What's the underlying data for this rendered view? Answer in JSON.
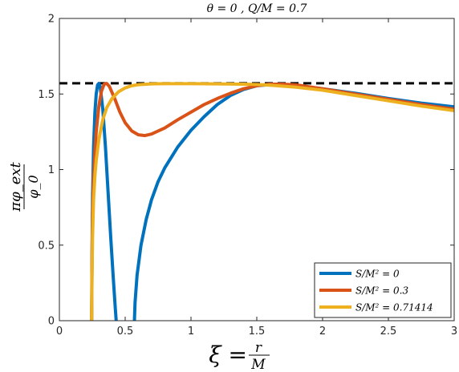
{
  "chart_data": {
    "type": "line",
    "title": "θ = 0 ,    Q/M = 0.7",
    "xlabel": {
      "lhs": "ξ = ",
      "num": "r",
      "den": "M"
    },
    "ylabel": {
      "num": "πφ_ext",
      "den": "φ_0"
    },
    "xlim": [
      0,
      3
    ],
    "ylim": [
      0,
      2
    ],
    "xticks": [
      0,
      0.5,
      1,
      1.5,
      2,
      2.5,
      3
    ],
    "xtick_labels": [
      "0",
      "0.5",
      "1",
      "1.5",
      "2",
      "2.5",
      "3"
    ],
    "yticks": [
      0,
      0.5,
      1,
      1.5,
      2
    ],
    "ytick_labels": [
      "0",
      "0.5",
      "1",
      "1.5",
      "2"
    ],
    "grid": false,
    "legend_position": "bottom-right",
    "reference_line": {
      "y": 1.5708,
      "style": "dashed",
      "color": "#000000"
    },
    "series": [
      {
        "name": "S/M² = 0",
        "color": "#0072BD",
        "segments": [
          [
            [
              0.245,
              0.0
            ],
            [
              0.248,
              0.45
            ],
            [
              0.252,
              0.8
            ],
            [
              0.26,
              1.15
            ],
            [
              0.27,
              1.38
            ],
            [
              0.28,
              1.5
            ],
            [
              0.29,
              1.56
            ],
            [
              0.3,
              1.57
            ],
            [
              0.31,
              1.55
            ],
            [
              0.33,
              1.4
            ],
            [
              0.35,
              1.15
            ],
            [
              0.37,
              0.85
            ],
            [
              0.39,
              0.55
            ],
            [
              0.41,
              0.28
            ],
            [
              0.425,
              0.08
            ],
            [
              0.432,
              0.0
            ]
          ],
          [
            [
              0.57,
              0.0
            ],
            [
              0.575,
              0.12
            ],
            [
              0.59,
              0.3
            ],
            [
              0.62,
              0.5
            ],
            [
              0.66,
              0.67
            ],
            [
              0.7,
              0.8
            ],
            [
              0.75,
              0.92
            ],
            [
              0.8,
              1.01
            ],
            [
              0.9,
              1.15
            ],
            [
              1.0,
              1.26
            ],
            [
              1.1,
              1.35
            ],
            [
              1.2,
              1.43
            ],
            [
              1.3,
              1.49
            ],
            [
              1.4,
              1.53
            ],
            [
              1.5,
              1.555
            ],
            [
              1.6,
              1.562
            ],
            [
              1.8,
              1.555
            ],
            [
              2.0,
              1.535
            ],
            [
              2.25,
              1.505
            ],
            [
              2.5,
              1.47
            ],
            [
              2.75,
              1.44
            ],
            [
              3.0,
              1.415
            ]
          ]
        ]
      },
      {
        "name": "S/M² = 0.3",
        "color": "#D95319",
        "segments": [
          [
            [
              0.245,
              0.0
            ],
            [
              0.248,
              0.4
            ],
            [
              0.252,
              0.7
            ],
            [
              0.26,
              0.95
            ],
            [
              0.27,
              1.12
            ],
            [
              0.28,
              1.25
            ],
            [
              0.3,
              1.42
            ],
            [
              0.32,
              1.52
            ],
            [
              0.34,
              1.565
            ],
            [
              0.36,
              1.57
            ],
            [
              0.38,
              1.55
            ],
            [
              0.42,
              1.47
            ],
            [
              0.46,
              1.38
            ],
            [
              0.5,
              1.31
            ],
            [
              0.55,
              1.255
            ],
            [
              0.6,
              1.23
            ],
            [
              0.65,
              1.225
            ],
            [
              0.7,
              1.235
            ],
            [
              0.8,
              1.275
            ],
            [
              0.9,
              1.33
            ],
            [
              1.0,
              1.38
            ],
            [
              1.1,
              1.43
            ],
            [
              1.2,
              1.47
            ],
            [
              1.3,
              1.505
            ],
            [
              1.4,
              1.535
            ],
            [
              1.5,
              1.555
            ],
            [
              1.6,
              1.565
            ],
            [
              1.7,
              1.565
            ],
            [
              1.8,
              1.56
            ],
            [
              2.0,
              1.535
            ],
            [
              2.25,
              1.5
            ],
            [
              2.5,
              1.465
            ],
            [
              2.75,
              1.43
            ],
            [
              3.0,
              1.4
            ]
          ]
        ]
      },
      {
        "name": "S/M² = 0.71414",
        "color": "#EDB120",
        "segments": [
          [
            [
              0.245,
              0.0
            ],
            [
              0.248,
              0.3
            ],
            [
              0.252,
              0.55
            ],
            [
              0.26,
              0.8
            ],
            [
              0.27,
              0.96
            ],
            [
              0.28,
              1.06
            ],
            [
              0.3,
              1.2
            ],
            [
              0.33,
              1.33
            ],
            [
              0.36,
              1.41
            ],
            [
              0.4,
              1.47
            ],
            [
              0.45,
              1.515
            ],
            [
              0.5,
              1.54
            ],
            [
              0.55,
              1.555
            ],
            [
              0.6,
              1.562
            ],
            [
              0.7,
              1.567
            ],
            [
              0.8,
              1.568
            ],
            [
              1.0,
              1.568
            ],
            [
              1.2,
              1.567
            ],
            [
              1.4,
              1.565
            ],
            [
              1.5,
              1.563
            ],
            [
              1.6,
              1.558
            ],
            [
              1.8,
              1.545
            ],
            [
              2.0,
              1.525
            ],
            [
              2.25,
              1.49
            ],
            [
              2.5,
              1.455
            ],
            [
              2.75,
              1.42
            ],
            [
              3.0,
              1.39
            ]
          ]
        ]
      }
    ]
  }
}
